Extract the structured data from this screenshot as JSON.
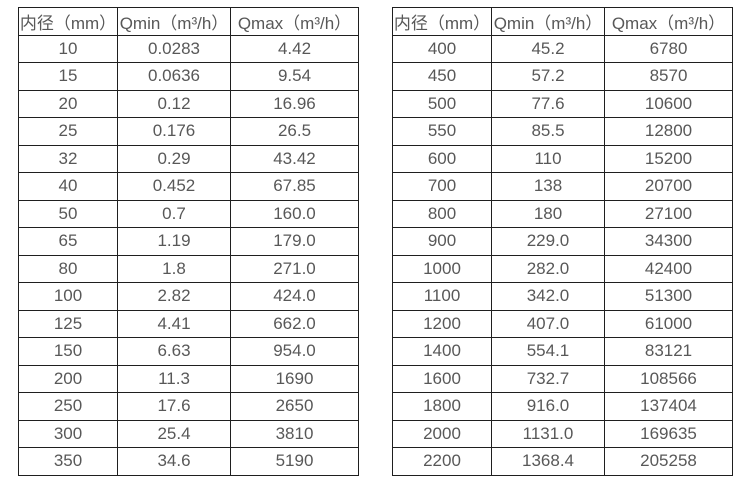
{
  "colors": {
    "background": "#ffffff",
    "border": "#1f1f1f",
    "text": "#585858"
  },
  "table_left": {
    "headers": [
      "内径（mm）",
      "Qmin（m³/h）",
      "Qmax（m³/h）"
    ],
    "rows": [
      [
        "10",
        "0.0283",
        "4.42"
      ],
      [
        "15",
        "0.0636",
        "9.54"
      ],
      [
        "20",
        "0.12",
        "16.96"
      ],
      [
        "25",
        "0.176",
        "26.5"
      ],
      [
        "32",
        "0.29",
        "43.42"
      ],
      [
        "40",
        "0.452",
        "67.85"
      ],
      [
        "50",
        "0.7",
        "160.0"
      ],
      [
        "65",
        "1.19",
        "179.0"
      ],
      [
        "80",
        "1.8",
        "271.0"
      ],
      [
        "100",
        "2.82",
        "424.0"
      ],
      [
        "125",
        "4.41",
        "662.0"
      ],
      [
        "150",
        "6.63",
        "954.0"
      ],
      [
        "200",
        "11.3",
        "1690"
      ],
      [
        "250",
        "17.6",
        "2650"
      ],
      [
        "300",
        "25.4",
        "3810"
      ],
      [
        "350",
        "34.6",
        "5190"
      ]
    ]
  },
  "table_right": {
    "headers": [
      "内径（mm）",
      "Qmin（m³/h）",
      "Qmax（m³/h）"
    ],
    "rows": [
      [
        "400",
        "45.2",
        "6780"
      ],
      [
        "450",
        "57.2",
        "8570"
      ],
      [
        "500",
        "77.6",
        "10600"
      ],
      [
        "550",
        "85.5",
        "12800"
      ],
      [
        "600",
        "110",
        "15200"
      ],
      [
        "700",
        "138",
        "20700"
      ],
      [
        "800",
        "180",
        "27100"
      ],
      [
        "900",
        "229.0",
        "34300"
      ],
      [
        "1000",
        "282.0",
        "42400"
      ],
      [
        "1100",
        "342.0",
        "51300"
      ],
      [
        "1200",
        "407.0",
        "61000"
      ],
      [
        "1400",
        "554.1",
        "83121"
      ],
      [
        "1600",
        "732.7",
        "108566"
      ],
      [
        "1800",
        "916.0",
        "137404"
      ],
      [
        "2000",
        "1131.0",
        "169635"
      ],
      [
        "2200",
        "1368.4",
        "205258"
      ]
    ]
  }
}
